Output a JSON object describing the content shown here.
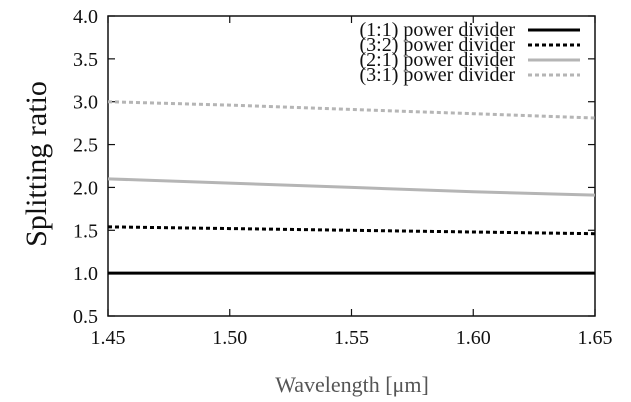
{
  "chart_data": {
    "type": "line",
    "xlabel": "Wavelength [μm]",
    "ylabel": "Splitting ratio",
    "xlim": [
      1.45,
      1.65
    ],
    "ylim": [
      0.5,
      4.0
    ],
    "xticks": [
      "1.45",
      "1.50",
      "1.55",
      "1.60",
      "1.65"
    ],
    "yticks": [
      "0.5",
      "1.0",
      "1.5",
      "2.0",
      "2.5",
      "3.0",
      "3.5",
      "4.0"
    ],
    "grid": false,
    "legend_position": "top-right",
    "series": [
      {
        "name": "(1:1) power divider",
        "color": "#000000",
        "style": "solid",
        "x": [
          1.45,
          1.5,
          1.55,
          1.6,
          1.65
        ],
        "y": [
          1.0,
          1.0,
          1.0,
          1.0,
          1.0
        ]
      },
      {
        "name": "(3:2) power divider",
        "color": "#000000",
        "style": "dotted",
        "x": [
          1.45,
          1.5,
          1.55,
          1.6,
          1.65
        ],
        "y": [
          1.54,
          1.52,
          1.5,
          1.48,
          1.46
        ]
      },
      {
        "name": "(2:1) power divider",
        "color": "#b5b5b5",
        "style": "solid",
        "x": [
          1.45,
          1.5,
          1.55,
          1.6,
          1.65
        ],
        "y": [
          2.1,
          2.05,
          2.0,
          1.95,
          1.91
        ]
      },
      {
        "name": "(3:1) power divider",
        "color": "#b5b5b5",
        "style": "dotted",
        "x": [
          1.45,
          1.5,
          1.55,
          1.6,
          1.65
        ],
        "y": [
          3.0,
          2.96,
          2.91,
          2.86,
          2.81
        ]
      }
    ]
  }
}
